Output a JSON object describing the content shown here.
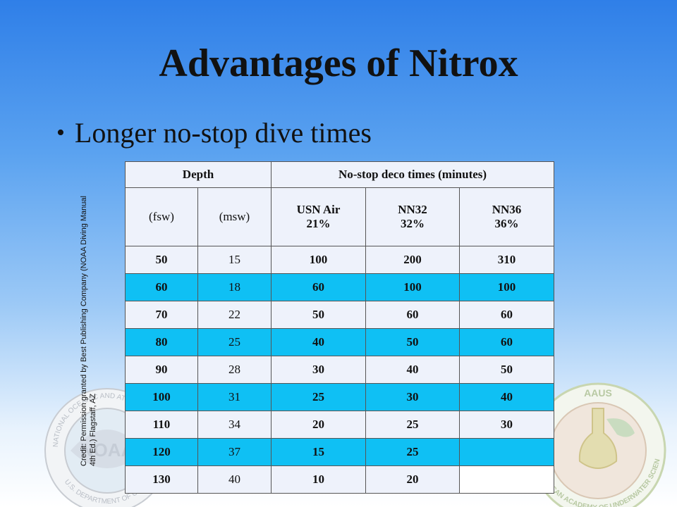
{
  "slide": {
    "title": "Advantages of Nitrox",
    "bullet": "Longer no-stop dive times",
    "credit_line1": "Credit: Permission granted by Best Publishing Company (NOAA Diving Manual",
    "credit_line2": "4th Ed.) Flagstaff, AZ"
  },
  "logos": {
    "noaa_text": "NATIONAL OCEANIC AND ATMOSPHERIC ADMINISTRATION",
    "noaa_bottom": "U.S. DEPARTMENT OF COMMERCE",
    "noaa_center": "NOAA",
    "aaus_top": "AAUS",
    "aaus_ring": "AMERICAN ACADEMY OF UNDERWATER SCIENCES"
  },
  "table": {
    "header_depth": "Depth",
    "header_times": "No-stop deco times (minutes)",
    "sub_fsw": "(fsw)",
    "sub_msw": "(msw)",
    "sub_air_1": "USN Air",
    "sub_air_2": "21%",
    "sub_nn32_1": "NN32",
    "sub_nn32_2": "32%",
    "sub_nn36_1": "NN36",
    "sub_nn36_2": "36%",
    "rows": [
      {
        "fsw": "50",
        "msw": "15",
        "air": "100",
        "nn32": "200",
        "nn36": "310"
      },
      {
        "fsw": "60",
        "msw": "18",
        "air": "60",
        "nn32": "100",
        "nn36": "100"
      },
      {
        "fsw": "70",
        "msw": "22",
        "air": "50",
        "nn32": "60",
        "nn36": "60"
      },
      {
        "fsw": "80",
        "msw": "25",
        "air": "40",
        "nn32": "50",
        "nn36": "60"
      },
      {
        "fsw": "90",
        "msw": "28",
        "air": "30",
        "nn32": "40",
        "nn36": "50"
      },
      {
        "fsw": "100",
        "msw": "31",
        "air": "25",
        "nn32": "30",
        "nn36": "40"
      },
      {
        "fsw": "110",
        "msw": "34",
        "air": "20",
        "nn32": "25",
        "nn36": "30"
      },
      {
        "fsw": "120",
        "msw": "37",
        "air": "15",
        "nn32": "25",
        "nn36": ""
      },
      {
        "fsw": "130",
        "msw": "40",
        "air": "10",
        "nn32": "20",
        "nn36": ""
      }
    ]
  },
  "colors": {
    "row_cyan": "#0fc0f4",
    "row_light": "#eef2fb",
    "bg_top": "#2f7fe8"
  }
}
